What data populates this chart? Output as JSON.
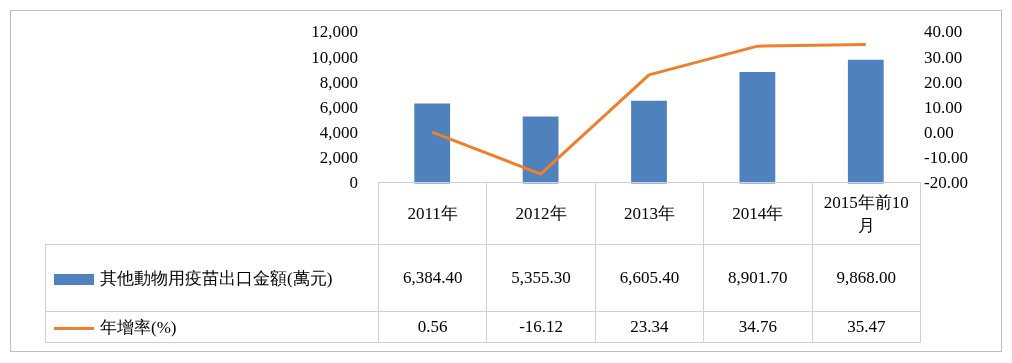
{
  "chart_data": {
    "type": "bar",
    "categories": [
      "2011年",
      "2012年",
      "2013年",
      "2014年",
      "2015年前10月"
    ],
    "series": [
      {
        "name": "其他動物用疫苗出口金額(萬元)",
        "color": "#4f81bd",
        "values": [
          6384.4,
          5355.3,
          6605.4,
          8901.7,
          9868
        ],
        "value_labels": [
          "6,384.40",
          "5,355.30",
          "6,605.40",
          "8,901.70",
          "9,868.00"
        ]
      },
      {
        "name": "年增率(%)",
        "type": "line",
        "axis": "y2",
        "color": "#f07f2b",
        "values": [
          0.56,
          -16.12,
          23.34,
          34.76,
          35.47
        ],
        "value_labels": [
          "0.56",
          "-16.12",
          "23.34",
          "34.76",
          "35.47"
        ]
      }
    ],
    "ylim": [
      0,
      12000
    ],
    "yticks": [
      0,
      {
        "value": 2000,
        "label": "2,000"
      },
      {
        "value": 4000,
        "label": "4,000"
      },
      {
        "value": 6000,
        "label": "6,000"
      },
      {
        "value": 8000,
        "label": "8,000"
      },
      {
        "value": 10000,
        "label": "10,000"
      },
      {
        "value": 12000,
        "label": "12,000"
      }
    ],
    "y2lim": [
      -20,
      40
    ],
    "y2ticks": [
      {
        "value": -20,
        "label": "-20.00"
      },
      {
        "value": -10,
        "label": "-10.00"
      },
      {
        "value": 0,
        "label": "0.00"
      },
      {
        "value": 10,
        "label": "10.00"
      },
      {
        "value": 20,
        "label": "20.00"
      },
      {
        "value": 30,
        "label": "30.00"
      },
      {
        "value": 40,
        "label": "40.00"
      }
    ],
    "marker": "none",
    "legend": "bottom"
  }
}
